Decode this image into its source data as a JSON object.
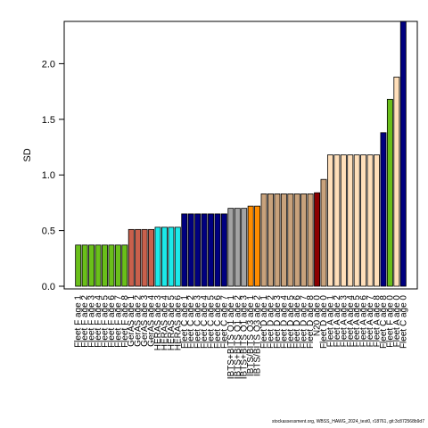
{
  "footnote": "stockassessment.org, WBSS_HAWG_2024_test0, r18761, git:3c872568b9d7",
  "chart_data": {
    "type": "bar",
    "title": "",
    "xlabel": "",
    "ylabel": "SD",
    "ylim": [
      0,
      2.38
    ],
    "yticks": [
      0.0,
      0.5,
      1.0,
      1.5,
      2.0
    ],
    "ytick_labels": [
      "0.0",
      "0.5",
      "1.0",
      "1.5",
      "2.0"
    ],
    "grid": false,
    "legend": "none",
    "categories": [
      "Fleet F age 1",
      "Fleet F age 2",
      "Fleet F age 3",
      "Fleet F age 4",
      "Fleet F age 5",
      "Fleet F age 6",
      "Fleet F age 7",
      "Fleet F age 8",
      "GerAS age 1",
      "GerAS age 2",
      "GerAS age 3",
      "GerAS age 4",
      "HERAS age 3",
      "HERAS age 4",
      "HERAS age 5",
      "HERAS age 6",
      "Fleet C age 1",
      "Fleet C age 2",
      "Fleet C age 3",
      "Fleet C age 4",
      "Fleet C age 5",
      "Fleet C age 6",
      "Fleet C age 7",
      "IBTS+BITS Q1 age 1",
      "IBTS+BITS Q1 age 2",
      "IBTS+BITS Q1 age 3",
      "IBTS/BITS Q3 age 1",
      "IBTS/BITS Q3 age 2",
      "Fleet D age 1",
      "Fleet D age 2",
      "Fleet D age 3",
      "Fleet D age 4",
      "Fleet D age 5",
      "Fleet D age 6",
      "Fleet D age 7",
      "Fleet D age 8",
      "N20 age 0",
      "Fleet D age 0",
      "Fleet A age 1",
      "Fleet A age 2",
      "Fleet A age 3",
      "Fleet A age 4",
      "Fleet A age 5",
      "Fleet A age 6",
      "Fleet A age 7",
      "Fleet A age 8",
      "Fleet C age 8",
      "Fleet F age 0",
      "Fleet A age 0",
      "Fleet C age 0"
    ],
    "values": [
      0.37,
      0.37,
      0.37,
      0.37,
      0.37,
      0.37,
      0.37,
      0.37,
      0.51,
      0.51,
      0.51,
      0.51,
      0.53,
      0.53,
      0.53,
      0.53,
      0.65,
      0.65,
      0.65,
      0.65,
      0.65,
      0.65,
      0.65,
      0.7,
      0.7,
      0.7,
      0.72,
      0.72,
      0.83,
      0.83,
      0.83,
      0.83,
      0.83,
      0.83,
      0.83,
      0.83,
      0.84,
      0.96,
      1.18,
      1.18,
      1.18,
      1.18,
      1.18,
      1.18,
      1.18,
      1.18,
      1.38,
      1.68,
      1.88,
      2.38
    ],
    "colors": [
      "#6abf1a",
      "#6abf1a",
      "#6abf1a",
      "#6abf1a",
      "#6abf1a",
      "#6abf1a",
      "#6abf1a",
      "#6abf1a",
      "#c9604c",
      "#c9604c",
      "#c9604c",
      "#c9604c",
      "#1ce8e8",
      "#1ce8e8",
      "#1ce8e8",
      "#1ce8e8",
      "#00007f",
      "#00007f",
      "#00007f",
      "#00007f",
      "#00007f",
      "#00007f",
      "#00007f",
      "#a3a3a3",
      "#a3a3a3",
      "#a3a3a3",
      "#ff8c00",
      "#ff8c00",
      "#c8a27c",
      "#c8a27c",
      "#c8a27c",
      "#c8a27c",
      "#c8a27c",
      "#c8a27c",
      "#c8a27c",
      "#c8a27c",
      "#8b0000",
      "#c8a27c",
      "#ffdfba",
      "#ffdfba",
      "#ffdfba",
      "#ffdfba",
      "#ffdfba",
      "#ffdfba",
      "#ffdfba",
      "#ffdfba",
      "#00007f",
      "#6abf1a",
      "#ffdfba",
      "#00007f"
    ]
  }
}
